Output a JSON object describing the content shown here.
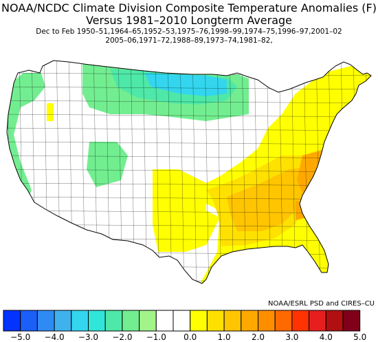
{
  "title": {
    "line1": "NOAA/NCDC Climate Division Composite Temperature Anomalies (F)",
    "line2": "Versus 1981–2010 Longterm Average"
  },
  "subtitle": {
    "line1": "Dec to Feb  1950–51,1964–65,1952–53,1975–76,1998–99,1974–75,1996–97,2001–02",
    "line2": "2005–06,1971–72,1988–89,1973–74,1981–82,"
  },
  "credit": "NOAA/ESRL PSD and CIRES–CU",
  "legend": {
    "colors": [
      "#0433ff",
      "#1c5ef8",
      "#2f8bf3",
      "#3fb2ee",
      "#33d6ee",
      "#2fe6d8",
      "#4ee8a8",
      "#72ee90",
      "#a1f48a",
      "#ffffff",
      "#ffffff",
      "#ffff00",
      "#ffe100",
      "#ffc500",
      "#ffa900",
      "#ff8d00",
      "#ff6900",
      "#ff3300",
      "#e61e1e",
      "#b01010",
      "#80001a"
    ],
    "tick_labels": [
      "−5.0",
      "−4.0",
      "−3.0",
      "−2.0",
      "−1.0",
      "0.0",
      "1.0",
      "2.0",
      "3.0",
      "4.0",
      "5.0"
    ],
    "tick_values": [
      -5,
      -4,
      -3,
      -2,
      -1,
      0,
      1,
      2,
      3,
      4,
      5
    ]
  },
  "map": {
    "palette": {
      "cold_1": "#72ee90",
      "cold_2": "#4ee8a8",
      "cold_3": "#33d6ee",
      "neutral": "#ffffff",
      "warm_1": "#ffff00",
      "warm_2": "#ffe100",
      "warm_3": "#ffc500",
      "warm_4": "#ffa900"
    },
    "border_color": "#000000"
  }
}
